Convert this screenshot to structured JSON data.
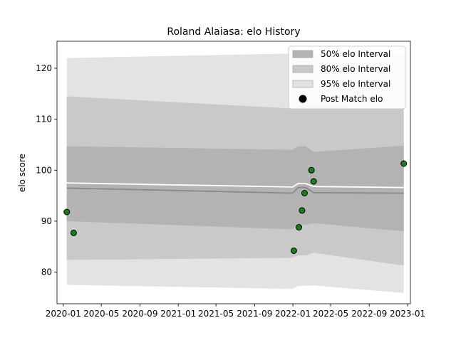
{
  "chart_data": {
    "type": "line",
    "title": "Roland Alaiasa: elo History",
    "xlabel": "",
    "ylabel": "elo score",
    "xlim": [
      "2019-12-12",
      "2023-01-10"
    ],
    "ylim": [
      73.8,
      125.3
    ],
    "grid": false,
    "legend_position": "top-right",
    "x_ticks": [
      "2020-01",
      "2020-05",
      "2020-09",
      "2021-01",
      "2021-05",
      "2021-09",
      "2022-01",
      "2022-05",
      "2022-09",
      "2023-01"
    ],
    "y_ticks": [
      80,
      90,
      100,
      110,
      120
    ],
    "colors": {
      "band_50": "#b3b3b3",
      "band_80": "#c9c9c9",
      "band_95": "#e3e3e3",
      "mean_line": "#ffffff",
      "median_line": "#888888",
      "point_fill": "#1a7f1a",
      "point_edge": "#000000"
    },
    "bands": {
      "x": [
        "2020-01-12",
        "2021-12-31",
        "2022-01-18",
        "2022-02-10",
        "2022-03-08",
        "2022-12-20"
      ],
      "p50": {
        "low": [
          90.0,
          88.4,
          89.3,
          89.3,
          89.6,
          88.0
        ],
        "high": [
          104.7,
          104.0,
          104.7,
          104.7,
          103.6,
          104.8
        ]
      },
      "p80": {
        "low": [
          82.4,
          82.8,
          83.3,
          83.3,
          83.8,
          81.3
        ],
        "high": [
          114.5,
          112.1,
          112.6,
          112.6,
          112.7,
          112.0
        ]
      },
      "p95": {
        "low": [
          77.5,
          76.7,
          77.3,
          77.3,
          77.4,
          75.9
        ],
        "high": [
          122.0,
          122.9,
          123.1,
          123.1,
          122.8,
          122.8
        ]
      }
    },
    "mean_line": {
      "x": [
        "2020-01-12",
        "2021-12-31",
        "2022-01-18",
        "2022-02-10",
        "2022-03-08",
        "2022-12-20"
      ],
      "y": [
        97.5,
        96.7,
        97.4,
        97.4,
        96.8,
        96.6
      ]
    },
    "median_line": {
      "x": [
        "2020-01-12",
        "2021-12-31",
        "2022-01-18",
        "2022-02-10",
        "2022-03-08",
        "2022-12-20"
      ],
      "y": [
        96.5,
        95.5,
        96.6,
        96.6,
        95.6,
        95.5
      ]
    },
    "series": [
      {
        "name": "Post Match elo",
        "points": [
          {
            "x": "2020-01-12",
            "y": 91.8
          },
          {
            "x": "2020-02-03",
            "y": 87.7
          },
          {
            "x": "2022-01-04",
            "y": 84.2
          },
          {
            "x": "2022-01-20",
            "y": 88.8
          },
          {
            "x": "2022-01-30",
            "y": 92.1
          },
          {
            "x": "2022-02-07",
            "y": 95.5
          },
          {
            "x": "2022-03-01",
            "y": 100.0
          },
          {
            "x": "2022-03-08",
            "y": 97.8
          },
          {
            "x": "2022-12-20",
            "y": 101.3
          }
        ]
      }
    ],
    "legend": [
      {
        "label": "50% elo Interval",
        "kind": "band_50"
      },
      {
        "label": "80% elo Interval",
        "kind": "band_80"
      },
      {
        "label": "95% elo Interval",
        "kind": "band_95"
      },
      {
        "label": "Post Match elo",
        "kind": "point"
      }
    ]
  }
}
